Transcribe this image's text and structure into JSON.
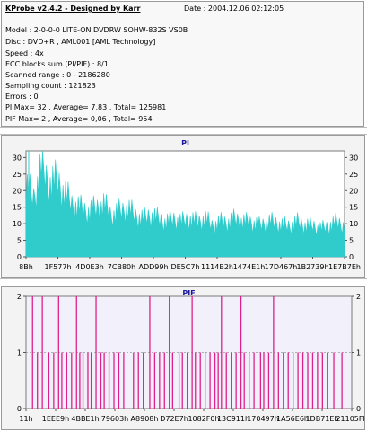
{
  "header": {
    "title": "KProbe v2.4.2 - Designed by Karr",
    "date": "Date : 2004.12.06 02:12:05"
  },
  "info_lines": [
    "Model : 2-0-0-0 LITE-ON DVDRW SOHW-832S  VS0B",
    "Disc : DVD+R , AML001 [AML Technology]",
    "Speed : 4x",
    "ECC blocks sum (PI/PIF) : 8/1",
    "Scanned range : 0 - 2186280",
    "Sampling count : 121823",
    "Errors : 0",
    "PI Max= 32 , Average= 7,83 , Total= 125981",
    "PIF Max= 2 , Average= 0,06 , Total= 954"
  ],
  "colors": {
    "pi": "#30cccc",
    "pif": "#e0208a",
    "title": "#1a1a9a",
    "plot_bg_pi": "#ffffff",
    "plot_bg_pif": "#f2f0fa"
  },
  "chart_data": [
    {
      "type": "area",
      "title": "PI",
      "xlabel": "",
      "ylabel": "",
      "ylim": [
        0,
        32
      ],
      "yticks": [
        0,
        5,
        10,
        15,
        20,
        25,
        30
      ],
      "xtick_labels": [
        "8Bh",
        "1F577h",
        "4D0E3h",
        "7CB80h",
        "ADD99h",
        "DE5C7h",
        "1114B2h",
        "1474E1h",
        "17D467h",
        "1B2739h",
        "1E7B7Eh"
      ],
      "grid": false,
      "series": [
        {
          "values": [
            20,
            17,
            26,
            21,
            22,
            18,
            15,
            14,
            13,
            14,
            15,
            12,
            13,
            14,
            12,
            11,
            12,
            11,
            10,
            11,
            10,
            11,
            10,
            11,
            9,
            10,
            10,
            11,
            10,
            10,
            9,
            10,
            10,
            9,
            9,
            10,
            9,
            9,
            8,
            9,
            10,
            9
          ]
        }
      ]
    },
    {
      "type": "bar",
      "title": "PIF",
      "xlabel": "",
      "ylabel": "",
      "ylim": [
        0,
        2
      ],
      "yticks": [
        0,
        1,
        2
      ],
      "xtick_labels": [
        "11h",
        "1EEE9h",
        "4BBE1h",
        "79603h",
        "A8908h",
        "D72E7h",
        "1082F0h",
        "13C911h",
        "170497h",
        "1A56E6h",
        "1DB71Eh",
        "21105Fh"
      ],
      "grid": true,
      "series": [
        {
          "x_fraction": [
            0.02,
            0.035,
            0.05,
            0.07,
            0.085,
            0.1,
            0.11,
            0.125,
            0.14,
            0.155,
            0.165,
            0.175,
            0.19,
            0.2,
            0.215,
            0.23,
            0.24,
            0.255,
            0.27,
            0.285,
            0.3,
            0.33,
            0.345,
            0.36,
            0.38,
            0.395,
            0.41,
            0.425,
            0.44,
            0.45,
            0.47,
            0.48,
            0.495,
            0.51,
            0.52,
            0.535,
            0.55,
            0.565,
            0.58,
            0.59,
            0.6,
            0.615,
            0.63,
            0.645,
            0.66,
            0.67,
            0.685,
            0.7,
            0.72,
            0.73,
            0.745,
            0.76,
            0.775,
            0.79,
            0.805,
            0.82,
            0.835,
            0.85,
            0.865,
            0.88,
            0.895,
            0.91,
            0.925,
            0.945,
            0.97
          ],
          "values": [
            2,
            1,
            2,
            1,
            1,
            2,
            1,
            1,
            1,
            2,
            1,
            1,
            1,
            1,
            2,
            1,
            1,
            1,
            1,
            1,
            1,
            1,
            1,
            1,
            2,
            1,
            1,
            1,
            2,
            1,
            1,
            1,
            1,
            2,
            1,
            1,
            1,
            1,
            1,
            1,
            2,
            1,
            1,
            1,
            2,
            1,
            1,
            1,
            1,
            1,
            1,
            2,
            1,
            1,
            1,
            1,
            1,
            1,
            1,
            1,
            1,
            1,
            1,
            1,
            1
          ]
        }
      ]
    }
  ]
}
